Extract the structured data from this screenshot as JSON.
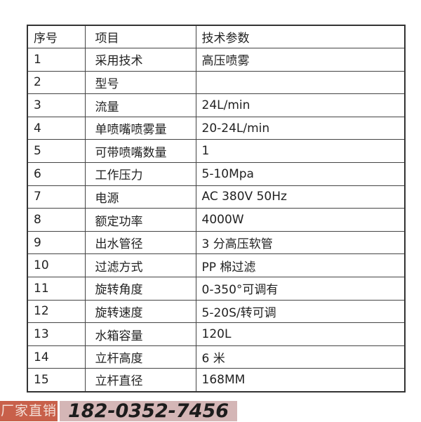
{
  "table": {
    "headers": [
      "序号",
      "项目",
      "技术参数"
    ],
    "rows": [
      [
        "1",
        "采用技术",
        "高压喷雾"
      ],
      [
        "2",
        "型号",
        ""
      ],
      [
        "3",
        "流量",
        "24L/min"
      ],
      [
        "4",
        "单喷嘴喷雾量",
        "20-24L/min"
      ],
      [
        "5",
        "可带喷嘴数量",
        "1"
      ],
      [
        "6",
        "工作压力",
        "5-10Mpa"
      ],
      [
        "7",
        "电源",
        "AC 380V 50Hz"
      ],
      [
        "8",
        "额定功率",
        "4000W"
      ],
      [
        "9",
        "出水管径",
        "3 分高压软管"
      ],
      [
        "10",
        "过滤方式",
        "PP 棉过滤"
      ],
      [
        "11",
        "旋转角度",
        "0-350°可调有"
      ],
      [
        "12",
        "旋转速度",
        "5-20S/转可调"
      ],
      [
        "13",
        "水箱容量",
        "120L"
      ],
      [
        "14",
        "立杆高度",
        "6 米"
      ],
      [
        "15",
        "立杆直径",
        "168MM"
      ]
    ]
  },
  "banner": {
    "label": "厂家直销",
    "phone": "182-0352-7456",
    "label_color": "#c8604a",
    "phone_bg_color": "#d4b6b6"
  }
}
